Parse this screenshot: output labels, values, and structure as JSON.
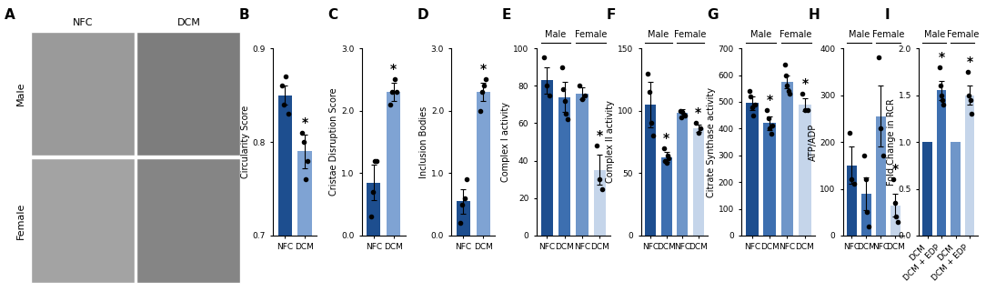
{
  "chart_data": [
    {
      "type": "image",
      "title": "A",
      "columns": [
        "NFC",
        "DCM"
      ],
      "rows": [
        "Male",
        "Female"
      ]
    },
    {
      "type": "bar",
      "title": "B",
      "y_label": "Circularity Score",
      "categories": [
        "NFC",
        "DCM"
      ],
      "values": [
        0.85,
        0.79
      ],
      "errors": [
        0.01,
        0.018
      ],
      "points": [
        [
          0.86,
          0.84,
          0.87,
          0.83
        ],
        [
          0.81,
          0.8,
          0.76,
          0.78
        ]
      ],
      "annotations": [
        null,
        "*"
      ],
      "colors": [
        "#1d4e8f",
        "#7fa3d3"
      ],
      "ylim": [
        0.7,
        0.9
      ],
      "yticks": [
        0.7,
        0.8,
        0.9
      ]
    },
    {
      "type": "bar",
      "title": "C",
      "y_label": "Cristae Disruption Score",
      "categories": [
        "NFC",
        "DCM"
      ],
      "values": [
        0.85,
        2.3
      ],
      "errors": [
        0.28,
        0.15
      ],
      "points": [
        [
          0.3,
          0.7,
          1.2,
          1.2
        ],
        [
          2.1,
          2.3,
          2.5,
          2.3
        ]
      ],
      "annotations": [
        null,
        "*"
      ],
      "colors": [
        "#1d4e8f",
        "#7fa3d3"
      ],
      "ylim": [
        0,
        3
      ],
      "yticks": [
        {
          "value": 0,
          "label": "0.0"
        },
        {
          "value": 1,
          "label": "1.0"
        },
        {
          "value": 2,
          "label": "2.0"
        },
        {
          "value": 3,
          "label": "3.0"
        }
      ]
    },
    {
      "type": "bar",
      "title": "D",
      "y_label": "Inclusion Bodies",
      "categories": [
        "NFC",
        "DCM"
      ],
      "values": [
        0.55,
        2.3
      ],
      "errors": [
        0.2,
        0.15
      ],
      "points": [
        [
          0.2,
          0.5,
          0.6,
          0.9
        ],
        [
          2.0,
          2.3,
          2.4,
          2.5
        ]
      ],
      "annotations": [
        null,
        "*"
      ],
      "colors": [
        "#1d4e8f",
        "#7fa3d3"
      ],
      "ylim": [
        0,
        3
      ],
      "yticks": [
        {
          "value": 0,
          "label": "0.0"
        },
        {
          "value": 1,
          "label": "1.0"
        },
        {
          "value": 2,
          "label": "2.0"
        },
        {
          "value": 3,
          "label": "3.0"
        }
      ]
    },
    {
      "type": "bar",
      "title": "E",
      "y_label": "Complex I activity",
      "categories": [
        "NFC",
        "DCM",
        "NFC",
        "DCM"
      ],
      "groups": [
        "Male",
        "Male",
        "Female",
        "Female"
      ],
      "values": [
        83,
        74,
        76,
        35
      ],
      "errors": [
        7,
        8,
        3,
        8
      ],
      "points": [
        [
          95,
          80,
          75
        ],
        [
          90,
          78,
          72,
          65,
          62
        ],
        [
          80,
          73,
          75
        ],
        [
          48,
          30,
          25
        ]
      ],
      "annotations": [
        null,
        null,
        null,
        "*"
      ],
      "colors": [
        "#1d4e8f",
        "#3d6fb0",
        "#6f96c9",
        "#c5d5ea"
      ],
      "ylim": [
        0,
        100
      ],
      "yticks": [
        0,
        20,
        40,
        60,
        80,
        100
      ]
    },
    {
      "type": "bar",
      "title": "F",
      "y_label": "Complex II activity",
      "categories": [
        "NFC",
        "DCM",
        "NFC",
        "DCM"
      ],
      "groups": [
        "Male",
        "Male",
        "Female",
        "Female"
      ],
      "values": [
        105,
        63,
        98,
        86
      ],
      "errors": [
        18,
        4,
        3,
        3
      ],
      "points": [
        [
          130,
          115,
          90,
          80
        ],
        [
          70,
          60,
          58,
          64,
          62
        ],
        [
          100,
          95,
          99,
          97,
          96
        ],
        [
          90,
          82,
          86
        ]
      ],
      "annotations": [
        null,
        "*",
        null,
        "*"
      ],
      "colors": [
        "#1d4e8f",
        "#3d6fb0",
        "#6f96c9",
        "#c5d5ea"
      ],
      "ylim": [
        0,
        150
      ],
      "yticks": [
        0,
        50,
        100,
        150
      ]
    },
    {
      "type": "bar",
      "title": "G",
      "y_label": "Citrate Synthase activity",
      "categories": [
        "NFC",
        "DCM",
        "NFC",
        "DCM"
      ],
      "groups": [
        "Male",
        "Male",
        "Female",
        "Female"
      ],
      "values": [
        495,
        420,
        575,
        490
      ],
      "errors": [
        25,
        25,
        25,
        25
      ],
      "points": [
        [
          540,
          520,
          480,
          450,
          490
        ],
        [
          470,
          440,
          400,
          380,
          410
        ],
        [
          640,
          600,
          560,
          540,
          530
        ],
        [
          530,
          470,
          470
        ]
      ],
      "annotations": [
        null,
        "*",
        null,
        "*"
      ],
      "colors": [
        "#1d4e8f",
        "#3d6fb0",
        "#6f96c9",
        "#c5d5ea"
      ],
      "ylim": [
        0,
        700
      ],
      "yticks": [
        0,
        100,
        200,
        300,
        400,
        500,
        600,
        700
      ]
    },
    {
      "type": "bar",
      "title": "H",
      "y_label": "ATP/ADP",
      "categories": [
        "NFC",
        "DCM",
        "NFC",
        "DCM"
      ],
      "groups": [
        "Male",
        "Male",
        "Female",
        "Female"
      ],
      "values": [
        150,
        90,
        255,
        65
      ],
      "errors": [
        40,
        35,
        65,
        25
      ],
      "points": [
        [
          220,
          120,
          110
        ],
        [
          170,
          120,
          50,
          20
        ],
        [
          380,
          230,
          170
        ],
        [
          120,
          70,
          40,
          30
        ]
      ],
      "annotations": [
        null,
        null,
        null,
        "*"
      ],
      "colors": [
        "#1d4e8f",
        "#3d6fb0",
        "#6f96c9",
        "#c5d5ea"
      ],
      "ylim": [
        0,
        400
      ],
      "yticks": [
        0,
        100,
        200,
        300,
        400
      ]
    },
    {
      "type": "bar",
      "title": "I",
      "y_label": "Fold Change in RCR",
      "categories": [
        "DCM",
        "DCM + EDP",
        "DCM",
        "DCM + EDP"
      ],
      "groups": [
        "Male",
        "Male",
        "Female",
        "Female"
      ],
      "values": [
        1,
        1.55,
        1,
        1.5
      ],
      "errors": [
        null,
        0.1,
        null,
        0.1
      ],
      "points": [
        [],
        [
          1.8,
          1.6,
          1.5,
          1.45,
          1.4
        ],
        [],
        [
          1.75,
          1.5,
          1.45,
          1.3
        ]
      ],
      "annotations": [
        null,
        "*",
        null,
        "*"
      ],
      "colors": [
        "#1d4e8f",
        "#3d6fb0",
        "#6f96c9",
        "#c5d5ea"
      ],
      "ylim": [
        0,
        2
      ],
      "yticks": [
        {
          "value": 0,
          "label": "0.0"
        },
        {
          "value": 0.5,
          "label": "0.5"
        },
        {
          "value": 1,
          "label": "1.0"
        },
        {
          "value": 1.5,
          "label": "1.5"
        },
        {
          "value": 2,
          "label": "2.0"
        }
      ]
    }
  ]
}
